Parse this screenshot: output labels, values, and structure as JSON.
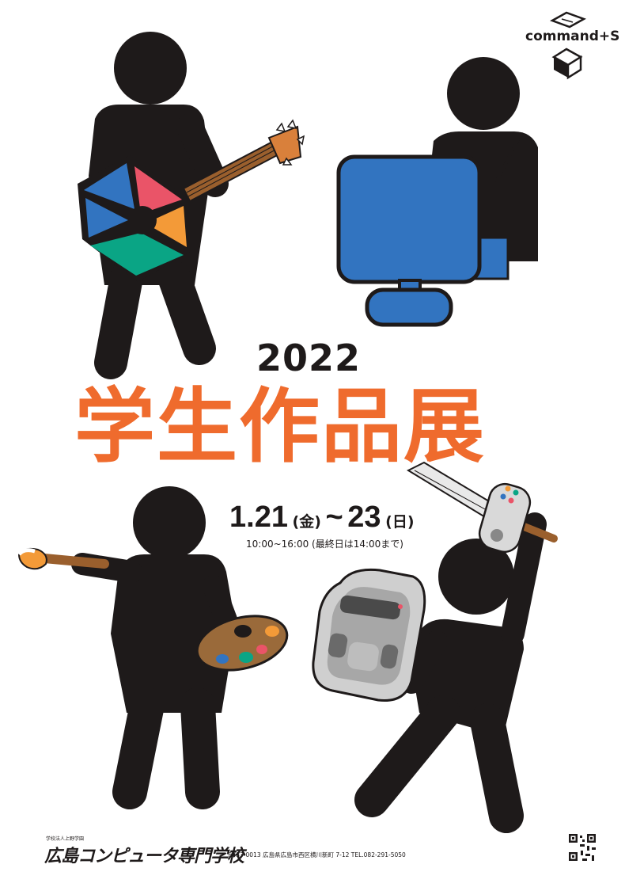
{
  "brand": {
    "logo_text": "command+S",
    "logo_icon": "open-box-icon"
  },
  "event": {
    "year": "2022",
    "title": "学生作品展",
    "start_date": "1.21",
    "start_day": "(金)",
    "range_sep": "~",
    "end_date": "23",
    "end_day": "(日)",
    "hours": "10:00~16:00 (最終日は14:00まで)"
  },
  "footer": {
    "corporation": "学校法人上野学園",
    "school_name": "広島コンピュータ専門学校",
    "address": "〒733-0013 広島県広島市西区横川新町 7-12    TEL.082-291-5050",
    "qr_icon": "qr-code-icon"
  },
  "illustrations": [
    "guitar-player-figure",
    "computer-user-figure",
    "painter-figure",
    "gamer-figure"
  ],
  "colors": {
    "title_orange": "#ef6b2d",
    "figure_black": "#1e1a1a",
    "monitor_blue": "#3274c0",
    "guitar_red": "#ea5468",
    "guitar_blue": "#3274c0",
    "guitar_orange": "#f39a38",
    "guitar_green": "#0aa585",
    "palette_brown": "#9a6a3a"
  }
}
